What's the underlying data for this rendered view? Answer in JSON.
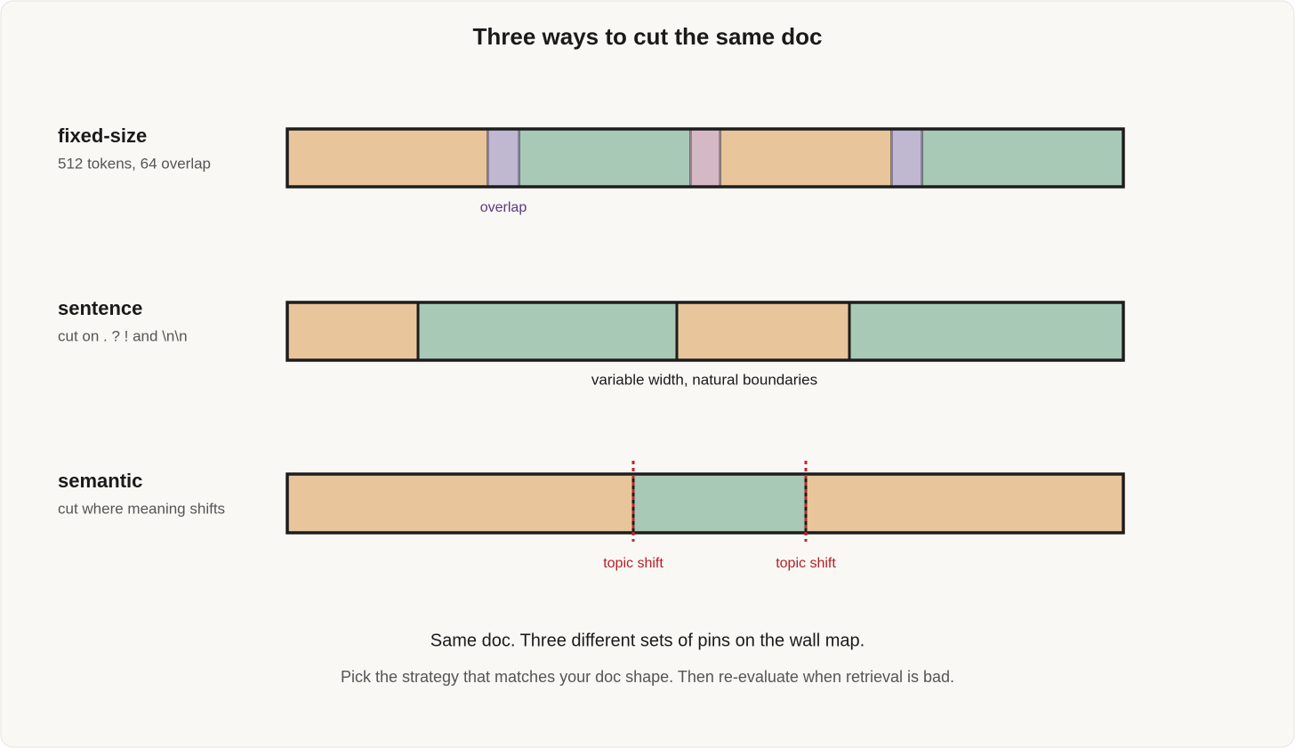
{
  "title": "Three ways to cut the same doc",
  "rows": [
    {
      "label": "fixed-size",
      "description": "512 tokens, 64 overlap",
      "annotations": [
        "overlap"
      ]
    },
    {
      "label": "sentence",
      "description": "cut on . ? ! and \\n\\n",
      "annotations": [
        "variable width, natural boundaries"
      ]
    },
    {
      "label": "semantic",
      "description": "cut where meaning shifts",
      "annotations": [
        "topic shift",
        "topic shift"
      ]
    }
  ],
  "footer": {
    "headline": "Same doc. Three different sets of pins on the wall map.",
    "note": "Pick the strategy that matches your doc shape. Then re-evaluate when retrieval is bad."
  }
}
